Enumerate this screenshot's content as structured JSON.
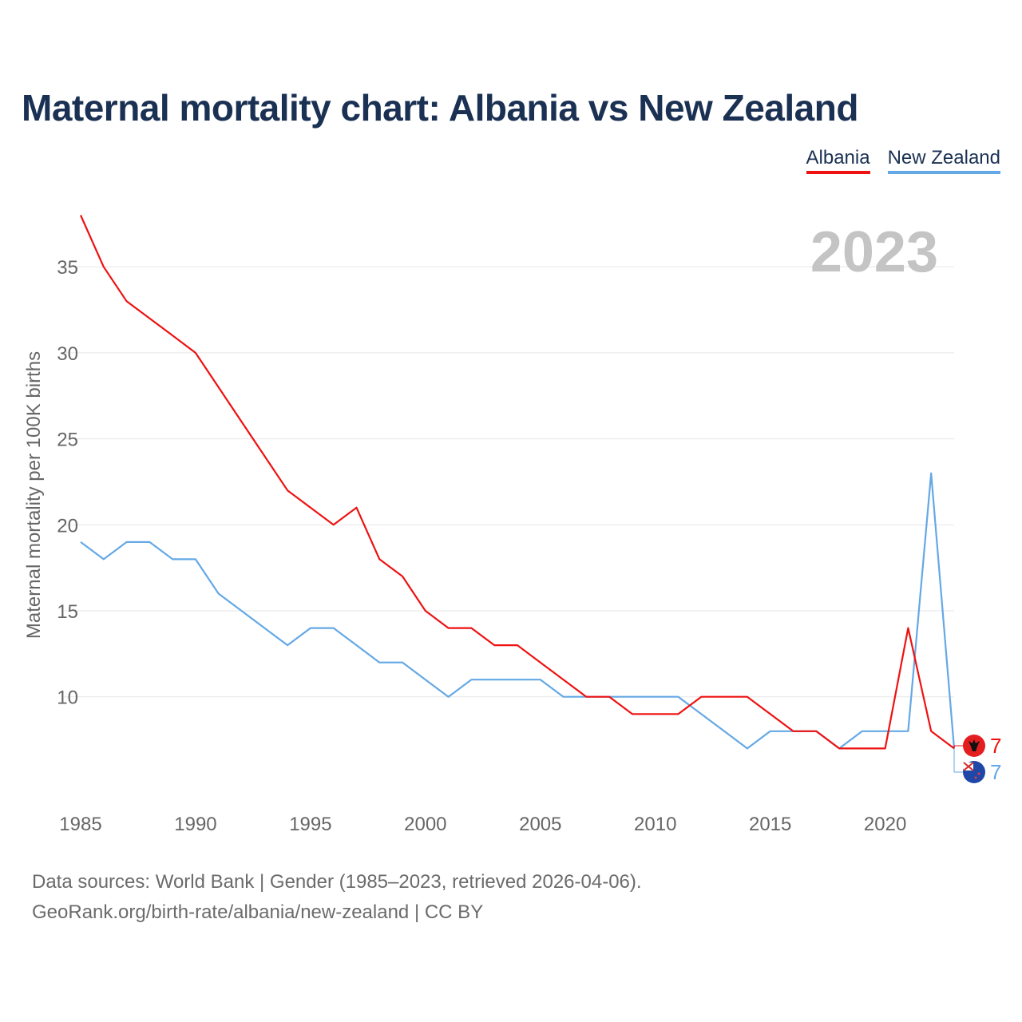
{
  "title": "Maternal mortality chart: Albania vs New Zealand",
  "legend": [
    {
      "label": "Albania",
      "color": "#ee1111"
    },
    {
      "label": "New Zealand",
      "color": "#64a8e6"
    }
  ],
  "year_watermark": "2023",
  "source_line1": "Data sources: World Bank | Gender (1985–2023, retrieved 2026-04-06).",
  "source_line2": "GeoRank.org/birth-rate/albania/new-zealand | CC BY",
  "chart_data": {
    "type": "line",
    "title": "Maternal mortality chart: Albania vs New Zealand",
    "xlabel": "",
    "ylabel": "Maternal mortality per 100K births",
    "xlim": [
      1985,
      2023
    ],
    "ylim": [
      4,
      39
    ],
    "xticks": [
      1985,
      1990,
      1995,
      2000,
      2005,
      2010,
      2015,
      2020
    ],
    "yticks": [
      10,
      15,
      20,
      25,
      30,
      35
    ],
    "grid": true,
    "x": [
      1985,
      1986,
      1987,
      1988,
      1989,
      1990,
      1991,
      1992,
      1993,
      1994,
      1995,
      1996,
      1997,
      1998,
      1999,
      2000,
      2001,
      2002,
      2003,
      2004,
      2005,
      2006,
      2007,
      2008,
      2009,
      2010,
      2011,
      2012,
      2013,
      2014,
      2015,
      2016,
      2017,
      2018,
      2019,
      2020,
      2021,
      2022,
      2023
    ],
    "series": [
      {
        "name": "Albania",
        "color": "#ee1111",
        "values": [
          38,
          35,
          33,
          32,
          31,
          30,
          28,
          26,
          24,
          22,
          21,
          20,
          21,
          18,
          17,
          15,
          14,
          14,
          13,
          13,
          12,
          11,
          10,
          10,
          9,
          9,
          9,
          10,
          10,
          10,
          9,
          8,
          8,
          7,
          7,
          7,
          14,
          8,
          7
        ],
        "end_label": "7"
      },
      {
        "name": "New Zealand",
        "color": "#64a8e6",
        "values": [
          19,
          18,
          19,
          19,
          18,
          18,
          16,
          15,
          14,
          13,
          14,
          14,
          13,
          12,
          12,
          11,
          10,
          11,
          11,
          11,
          11,
          10,
          10,
          10,
          10,
          10,
          10,
          9,
          8,
          7,
          8,
          8,
          8,
          7,
          8,
          8,
          8,
          23,
          7
        ],
        "end_label": "7"
      }
    ]
  }
}
